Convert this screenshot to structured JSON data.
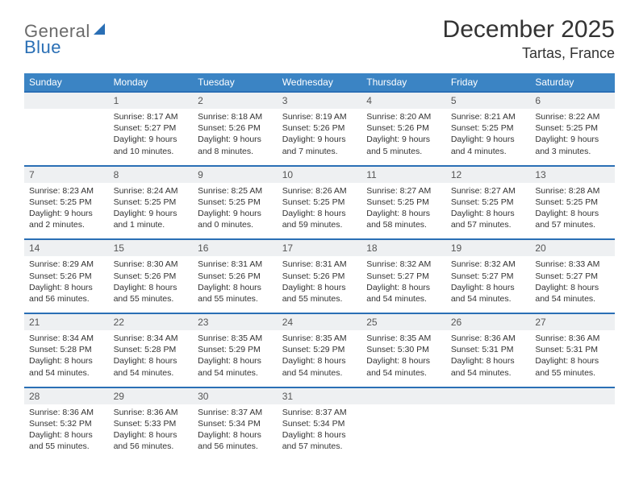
{
  "colors": {
    "header_bg": "#3b84c4",
    "header_text": "#ffffff",
    "daynum_bg": "#eef0f2",
    "rule": "#2a6fb5",
    "logo_gray": "#6a6a6a",
    "logo_blue": "#2a6fb5",
    "page_bg": "#ffffff",
    "text": "#333333"
  },
  "typography": {
    "month_title_size": 30,
    "location_size": 18,
    "dayhead_size": 12,
    "cell_size": 10.5
  },
  "logo": {
    "part1": "General",
    "part2": "Blue"
  },
  "title": "December 2025",
  "location": "Tartas, France",
  "day_headers": [
    "Sunday",
    "Monday",
    "Tuesday",
    "Wednesday",
    "Thursday",
    "Friday",
    "Saturday"
  ],
  "weeks": [
    [
      null,
      {
        "n": "1",
        "sr": "Sunrise: 8:17 AM",
        "ss": "Sunset: 5:27 PM",
        "d1": "Daylight: 9 hours",
        "d2": "and 10 minutes."
      },
      {
        "n": "2",
        "sr": "Sunrise: 8:18 AM",
        "ss": "Sunset: 5:26 PM",
        "d1": "Daylight: 9 hours",
        "d2": "and 8 minutes."
      },
      {
        "n": "3",
        "sr": "Sunrise: 8:19 AM",
        "ss": "Sunset: 5:26 PM",
        "d1": "Daylight: 9 hours",
        "d2": "and 7 minutes."
      },
      {
        "n": "4",
        "sr": "Sunrise: 8:20 AM",
        "ss": "Sunset: 5:26 PM",
        "d1": "Daylight: 9 hours",
        "d2": "and 5 minutes."
      },
      {
        "n": "5",
        "sr": "Sunrise: 8:21 AM",
        "ss": "Sunset: 5:25 PM",
        "d1": "Daylight: 9 hours",
        "d2": "and 4 minutes."
      },
      {
        "n": "6",
        "sr": "Sunrise: 8:22 AM",
        "ss": "Sunset: 5:25 PM",
        "d1": "Daylight: 9 hours",
        "d2": "and 3 minutes."
      }
    ],
    [
      {
        "n": "7",
        "sr": "Sunrise: 8:23 AM",
        "ss": "Sunset: 5:25 PM",
        "d1": "Daylight: 9 hours",
        "d2": "and 2 minutes."
      },
      {
        "n": "8",
        "sr": "Sunrise: 8:24 AM",
        "ss": "Sunset: 5:25 PM",
        "d1": "Daylight: 9 hours",
        "d2": "and 1 minute."
      },
      {
        "n": "9",
        "sr": "Sunrise: 8:25 AM",
        "ss": "Sunset: 5:25 PM",
        "d1": "Daylight: 9 hours",
        "d2": "and 0 minutes."
      },
      {
        "n": "10",
        "sr": "Sunrise: 8:26 AM",
        "ss": "Sunset: 5:25 PM",
        "d1": "Daylight: 8 hours",
        "d2": "and 59 minutes."
      },
      {
        "n": "11",
        "sr": "Sunrise: 8:27 AM",
        "ss": "Sunset: 5:25 PM",
        "d1": "Daylight: 8 hours",
        "d2": "and 58 minutes."
      },
      {
        "n": "12",
        "sr": "Sunrise: 8:27 AM",
        "ss": "Sunset: 5:25 PM",
        "d1": "Daylight: 8 hours",
        "d2": "and 57 minutes."
      },
      {
        "n": "13",
        "sr": "Sunrise: 8:28 AM",
        "ss": "Sunset: 5:25 PM",
        "d1": "Daylight: 8 hours",
        "d2": "and 57 minutes."
      }
    ],
    [
      {
        "n": "14",
        "sr": "Sunrise: 8:29 AM",
        "ss": "Sunset: 5:26 PM",
        "d1": "Daylight: 8 hours",
        "d2": "and 56 minutes."
      },
      {
        "n": "15",
        "sr": "Sunrise: 8:30 AM",
        "ss": "Sunset: 5:26 PM",
        "d1": "Daylight: 8 hours",
        "d2": "and 55 minutes."
      },
      {
        "n": "16",
        "sr": "Sunrise: 8:31 AM",
        "ss": "Sunset: 5:26 PM",
        "d1": "Daylight: 8 hours",
        "d2": "and 55 minutes."
      },
      {
        "n": "17",
        "sr": "Sunrise: 8:31 AM",
        "ss": "Sunset: 5:26 PM",
        "d1": "Daylight: 8 hours",
        "d2": "and 55 minutes."
      },
      {
        "n": "18",
        "sr": "Sunrise: 8:32 AM",
        "ss": "Sunset: 5:27 PM",
        "d1": "Daylight: 8 hours",
        "d2": "and 54 minutes."
      },
      {
        "n": "19",
        "sr": "Sunrise: 8:32 AM",
        "ss": "Sunset: 5:27 PM",
        "d1": "Daylight: 8 hours",
        "d2": "and 54 minutes."
      },
      {
        "n": "20",
        "sr": "Sunrise: 8:33 AM",
        "ss": "Sunset: 5:27 PM",
        "d1": "Daylight: 8 hours",
        "d2": "and 54 minutes."
      }
    ],
    [
      {
        "n": "21",
        "sr": "Sunrise: 8:34 AM",
        "ss": "Sunset: 5:28 PM",
        "d1": "Daylight: 8 hours",
        "d2": "and 54 minutes."
      },
      {
        "n": "22",
        "sr": "Sunrise: 8:34 AM",
        "ss": "Sunset: 5:28 PM",
        "d1": "Daylight: 8 hours",
        "d2": "and 54 minutes."
      },
      {
        "n": "23",
        "sr": "Sunrise: 8:35 AM",
        "ss": "Sunset: 5:29 PM",
        "d1": "Daylight: 8 hours",
        "d2": "and 54 minutes."
      },
      {
        "n": "24",
        "sr": "Sunrise: 8:35 AM",
        "ss": "Sunset: 5:29 PM",
        "d1": "Daylight: 8 hours",
        "d2": "and 54 minutes."
      },
      {
        "n": "25",
        "sr": "Sunrise: 8:35 AM",
        "ss": "Sunset: 5:30 PM",
        "d1": "Daylight: 8 hours",
        "d2": "and 54 minutes."
      },
      {
        "n": "26",
        "sr": "Sunrise: 8:36 AM",
        "ss": "Sunset: 5:31 PM",
        "d1": "Daylight: 8 hours",
        "d2": "and 54 minutes."
      },
      {
        "n": "27",
        "sr": "Sunrise: 8:36 AM",
        "ss": "Sunset: 5:31 PM",
        "d1": "Daylight: 8 hours",
        "d2": "and 55 minutes."
      }
    ],
    [
      {
        "n": "28",
        "sr": "Sunrise: 8:36 AM",
        "ss": "Sunset: 5:32 PM",
        "d1": "Daylight: 8 hours",
        "d2": "and 55 minutes."
      },
      {
        "n": "29",
        "sr": "Sunrise: 8:36 AM",
        "ss": "Sunset: 5:33 PM",
        "d1": "Daylight: 8 hours",
        "d2": "and 56 minutes."
      },
      {
        "n": "30",
        "sr": "Sunrise: 8:37 AM",
        "ss": "Sunset: 5:34 PM",
        "d1": "Daylight: 8 hours",
        "d2": "and 56 minutes."
      },
      {
        "n": "31",
        "sr": "Sunrise: 8:37 AM",
        "ss": "Sunset: 5:34 PM",
        "d1": "Daylight: 8 hours",
        "d2": "and 57 minutes."
      },
      null,
      null,
      null
    ]
  ]
}
